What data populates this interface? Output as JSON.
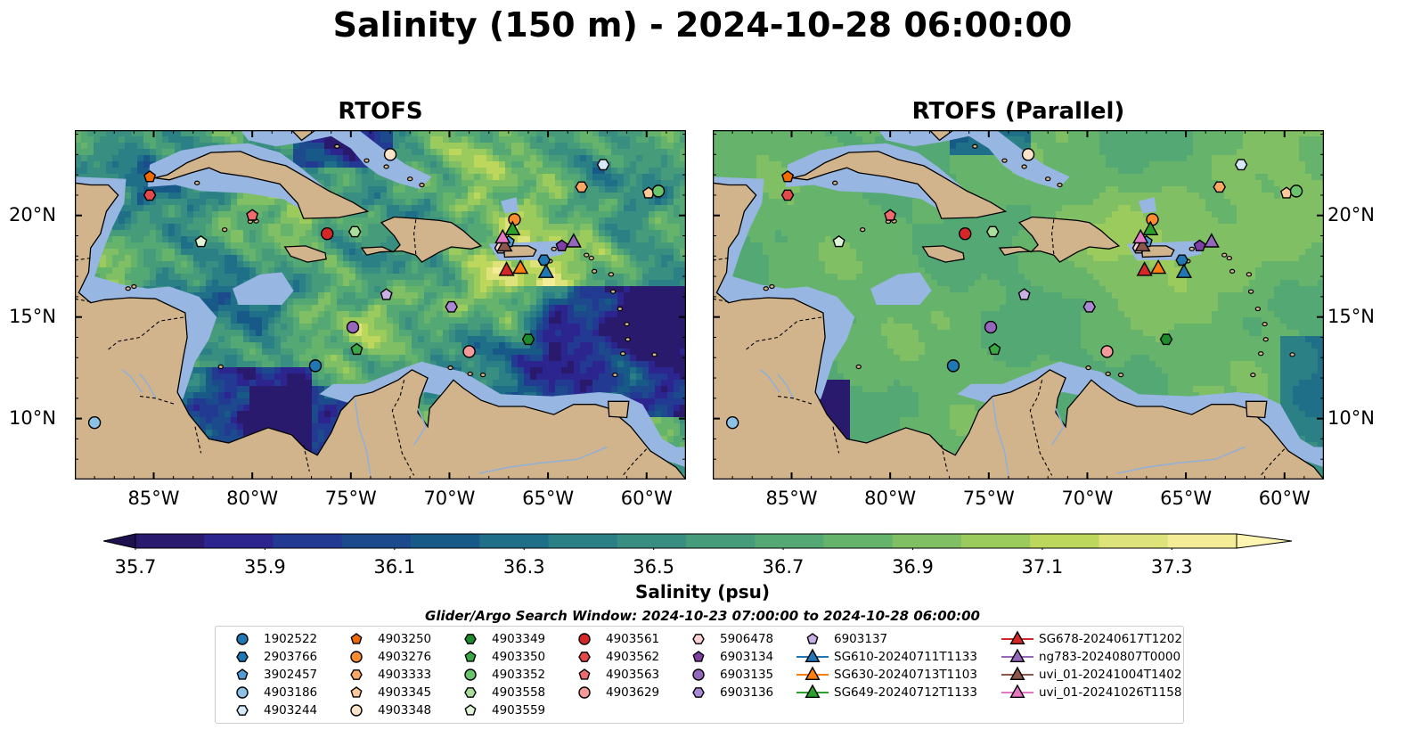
{
  "title": "Salinity (150 m) - 2024-10-28 06:00:00",
  "panels": [
    {
      "title": "RTOFS",
      "style": "detailed"
    },
    {
      "title": "RTOFS (Parallel)",
      "style": "smooth"
    }
  ],
  "map": {
    "lon_range": [
      -89,
      -58
    ],
    "lat_range": [
      7,
      24.2
    ],
    "lon_ticks": [
      -85,
      -80,
      -75,
      -70,
      -65,
      -60
    ],
    "lon_tick_labels": [
      "85°W",
      "80°W",
      "75°W",
      "70°W",
      "65°W",
      "60°W"
    ],
    "lat_ticks": [
      10,
      15,
      20
    ],
    "lat_tick_labels": [
      "10°N",
      "15°N",
      "20°N"
    ],
    "land_color": "#d2b48c",
    "shelf_color": "#97b6e1"
  },
  "colorbar": {
    "label": "Salinity (psu)",
    "min": 35.7,
    "max": 37.3,
    "step": 0.1,
    "tick_values": [
      35.7,
      35.9,
      36.1,
      36.3,
      36.5,
      36.7,
      36.9,
      37.1,
      37.3
    ],
    "tick_labels": [
      "35.7",
      "35.9",
      "36.1",
      "36.3",
      "36.5",
      "36.7",
      "36.9",
      "37.1",
      "37.3"
    ],
    "colors": [
      "#2a1a6e",
      "#2c2590",
      "#233a92",
      "#1c4a8c",
      "#185a87",
      "#1f6f88",
      "#2a8085",
      "#388e80",
      "#469c7a",
      "#54a874",
      "#66b46c",
      "#80bf63",
      "#9ccb5d",
      "#bdd75d",
      "#dde27a",
      "#f4ec96"
    ],
    "extend": "both"
  },
  "search_window": "Glider/Argo Search Window: 2024-10-23 07:00:00 to 2024-10-28 06:00:00",
  "observations": [
    {
      "id": "1902522",
      "marker": "circle",
      "color": "#1f77b4",
      "lon": -76.8,
      "lat": 12.6
    },
    {
      "id": "2903766",
      "marker": "hexagon",
      "color": "#1f77b4",
      "lon": -65.2,
      "lat": 17.8
    },
    {
      "id": "3902457",
      "marker": "pentagon",
      "color": "#4f9cd6",
      "lon": -67.0,
      "lat": 18.7
    },
    {
      "id": "4903186",
      "marker": "circle",
      "color": "#8ec1e6",
      "lon": -88.0,
      "lat": 9.8
    },
    {
      "id": "4903244",
      "marker": "hexagon",
      "color": "#d6e9f8",
      "lon": -62.2,
      "lat": 22.5
    },
    {
      "id": "4903250",
      "marker": "pentagon",
      "color": "#f06a00",
      "lon": -85.2,
      "lat": 21.9
    },
    {
      "id": "4903276",
      "marker": "circle",
      "color": "#fb8b2e",
      "lon": -66.7,
      "lat": 19.8
    },
    {
      "id": "4903333",
      "marker": "hexagon",
      "color": "#fca763",
      "lon": -63.3,
      "lat": 21.4
    },
    {
      "id": "4903345",
      "marker": "pentagon",
      "color": "#fdc99a",
      "lon": -59.9,
      "lat": 21.1
    },
    {
      "id": "4903348",
      "marker": "circle",
      "color": "#fde3c8",
      "lon": -73.0,
      "lat": 23.0
    },
    {
      "id": "4903349",
      "marker": "hexagon",
      "color": "#1e8b2c",
      "lon": -66.0,
      "lat": 13.9
    },
    {
      "id": "4903350",
      "marker": "pentagon",
      "color": "#3aa845",
      "lon": -74.7,
      "lat": 13.4
    },
    {
      "id": "4903352",
      "marker": "circle",
      "color": "#6ac46b",
      "lon": -59.4,
      "lat": 21.2
    },
    {
      "id": "4903558",
      "marker": "hexagon",
      "color": "#a9de9c",
      "lon": -74.8,
      "lat": 19.2
    },
    {
      "id": "4903559",
      "marker": "pentagon",
      "color": "#dff3d6",
      "lon": -82.6,
      "lat": 18.7
    },
    {
      "id": "4903561",
      "marker": "circle",
      "color": "#d62728",
      "lon": -76.2,
      "lat": 19.1
    },
    {
      "id": "4903562",
      "marker": "hexagon",
      "color": "#e3484b",
      "lon": -85.2,
      "lat": 21.0
    },
    {
      "id": "4903563",
      "marker": "pentagon",
      "color": "#f06a70",
      "lon": -80.0,
      "lat": 20.0
    },
    {
      "id": "4903629",
      "marker": "circle",
      "color": "#f59a9a",
      "lon": -69.0,
      "lat": 13.3
    },
    {
      "id": "5906478",
      "marker": "hexagon",
      "color": "#fcd2d2",
      "lon": -67.4,
      "lat": 18.4
    },
    {
      "id": "6903134",
      "marker": "pentagon",
      "color": "#7f3fa6",
      "lon": -64.3,
      "lat": 18.5
    },
    {
      "id": "6903135",
      "marker": "circle",
      "color": "#9467bd",
      "lon": -74.9,
      "lat": 14.5
    },
    {
      "id": "6903136",
      "marker": "hexagon",
      "color": "#ab88d4",
      "lon": -69.9,
      "lat": 15.5
    },
    {
      "id": "6903137",
      "marker": "pentagon",
      "color": "#c9b0e6",
      "lon": -73.2,
      "lat": 16.1
    }
  ],
  "gliders": [
    {
      "id": "SG610-20240711T1133",
      "color": "#1f77b4",
      "lon": -65.1,
      "lat": 17.2
    },
    {
      "id": "SG630-20240713T1103",
      "color": "#ff7f0e",
      "lon": -66.4,
      "lat": 17.4
    },
    {
      "id": "SG649-20240712T1133",
      "color": "#2ca02c",
      "lon": -66.8,
      "lat": 19.3
    },
    {
      "id": "SG678-20240617T1202",
      "color": "#d62728",
      "lon": -67.1,
      "lat": 17.3
    },
    {
      "id": "ng783-20240807T0000",
      "color": "#9467bd",
      "lon": -63.7,
      "lat": 18.7
    },
    {
      "id": "uvi_01-20241004T1402",
      "color": "#8c564b",
      "lon": -67.2,
      "lat": 18.5
    },
    {
      "id": "uvi_01-20241026T1158",
      "color": "#e377c2",
      "lon": -67.3,
      "lat": 18.9
    }
  ]
}
